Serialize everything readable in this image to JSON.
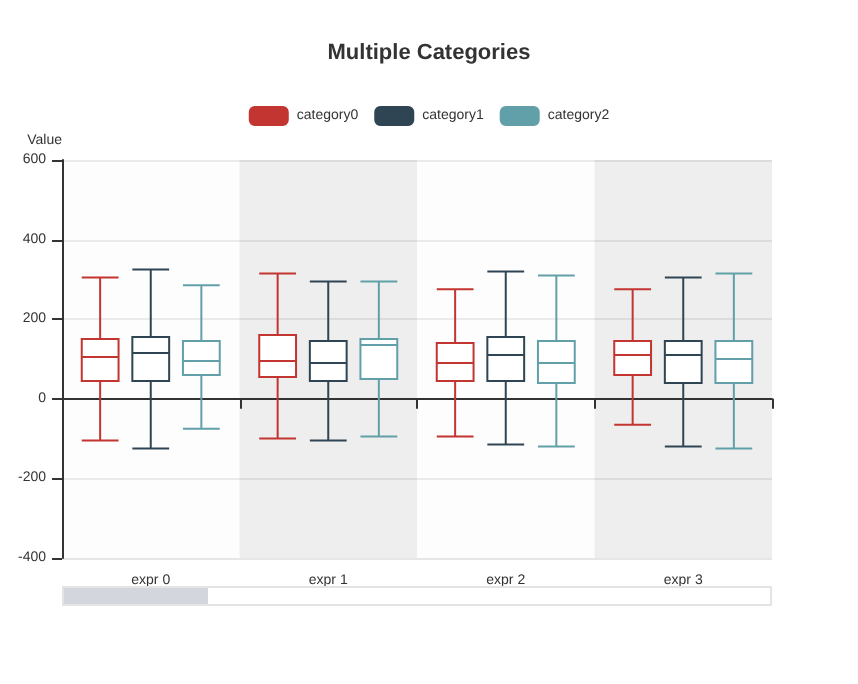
{
  "chart_data": {
    "type": "box",
    "title": "Multiple Categories",
    "ylabel": "Value",
    "categories": [
      "expr 0",
      "expr 1",
      "expr 2",
      "expr 3"
    ],
    "series": [
      {
        "name": "category0",
        "color": "#c23531",
        "boxes": [
          {
            "low": -105,
            "q1": 45,
            "median": 105,
            "q3": 150,
            "high": 305
          },
          {
            "low": -100,
            "q1": 55,
            "median": 95,
            "q3": 160,
            "high": 315
          },
          {
            "low": -95,
            "q1": 45,
            "median": 90,
            "q3": 140,
            "high": 275
          },
          {
            "low": -65,
            "q1": 60,
            "median": 110,
            "q3": 145,
            "high": 275
          }
        ]
      },
      {
        "name": "category1",
        "color": "#2f4554",
        "boxes": [
          {
            "low": -125,
            "q1": 45,
            "median": 115,
            "q3": 155,
            "high": 325
          },
          {
            "low": -105,
            "q1": 45,
            "median": 90,
            "q3": 145,
            "high": 295
          },
          {
            "low": -115,
            "q1": 45,
            "median": 110,
            "q3": 155,
            "high": 320
          },
          {
            "low": -120,
            "q1": 40,
            "median": 110,
            "q3": 145,
            "high": 305
          }
        ]
      },
      {
        "name": "category2",
        "color": "#61a0a8",
        "boxes": [
          {
            "low": -75,
            "q1": 60,
            "median": 95,
            "q3": 145,
            "high": 285
          },
          {
            "low": -95,
            "q1": 50,
            "median": 135,
            "q3": 150,
            "high": 295
          },
          {
            "low": -120,
            "q1": 40,
            "median": 90,
            "q3": 145,
            "high": 310
          },
          {
            "low": -125,
            "q1": 40,
            "median": 100,
            "q3": 145,
            "high": 315
          }
        ]
      }
    ],
    "ylim": [
      -400,
      600
    ],
    "yticks": [
      -400,
      -200,
      0,
      200,
      400,
      600
    ],
    "grid": "y",
    "legend": "top"
  }
}
